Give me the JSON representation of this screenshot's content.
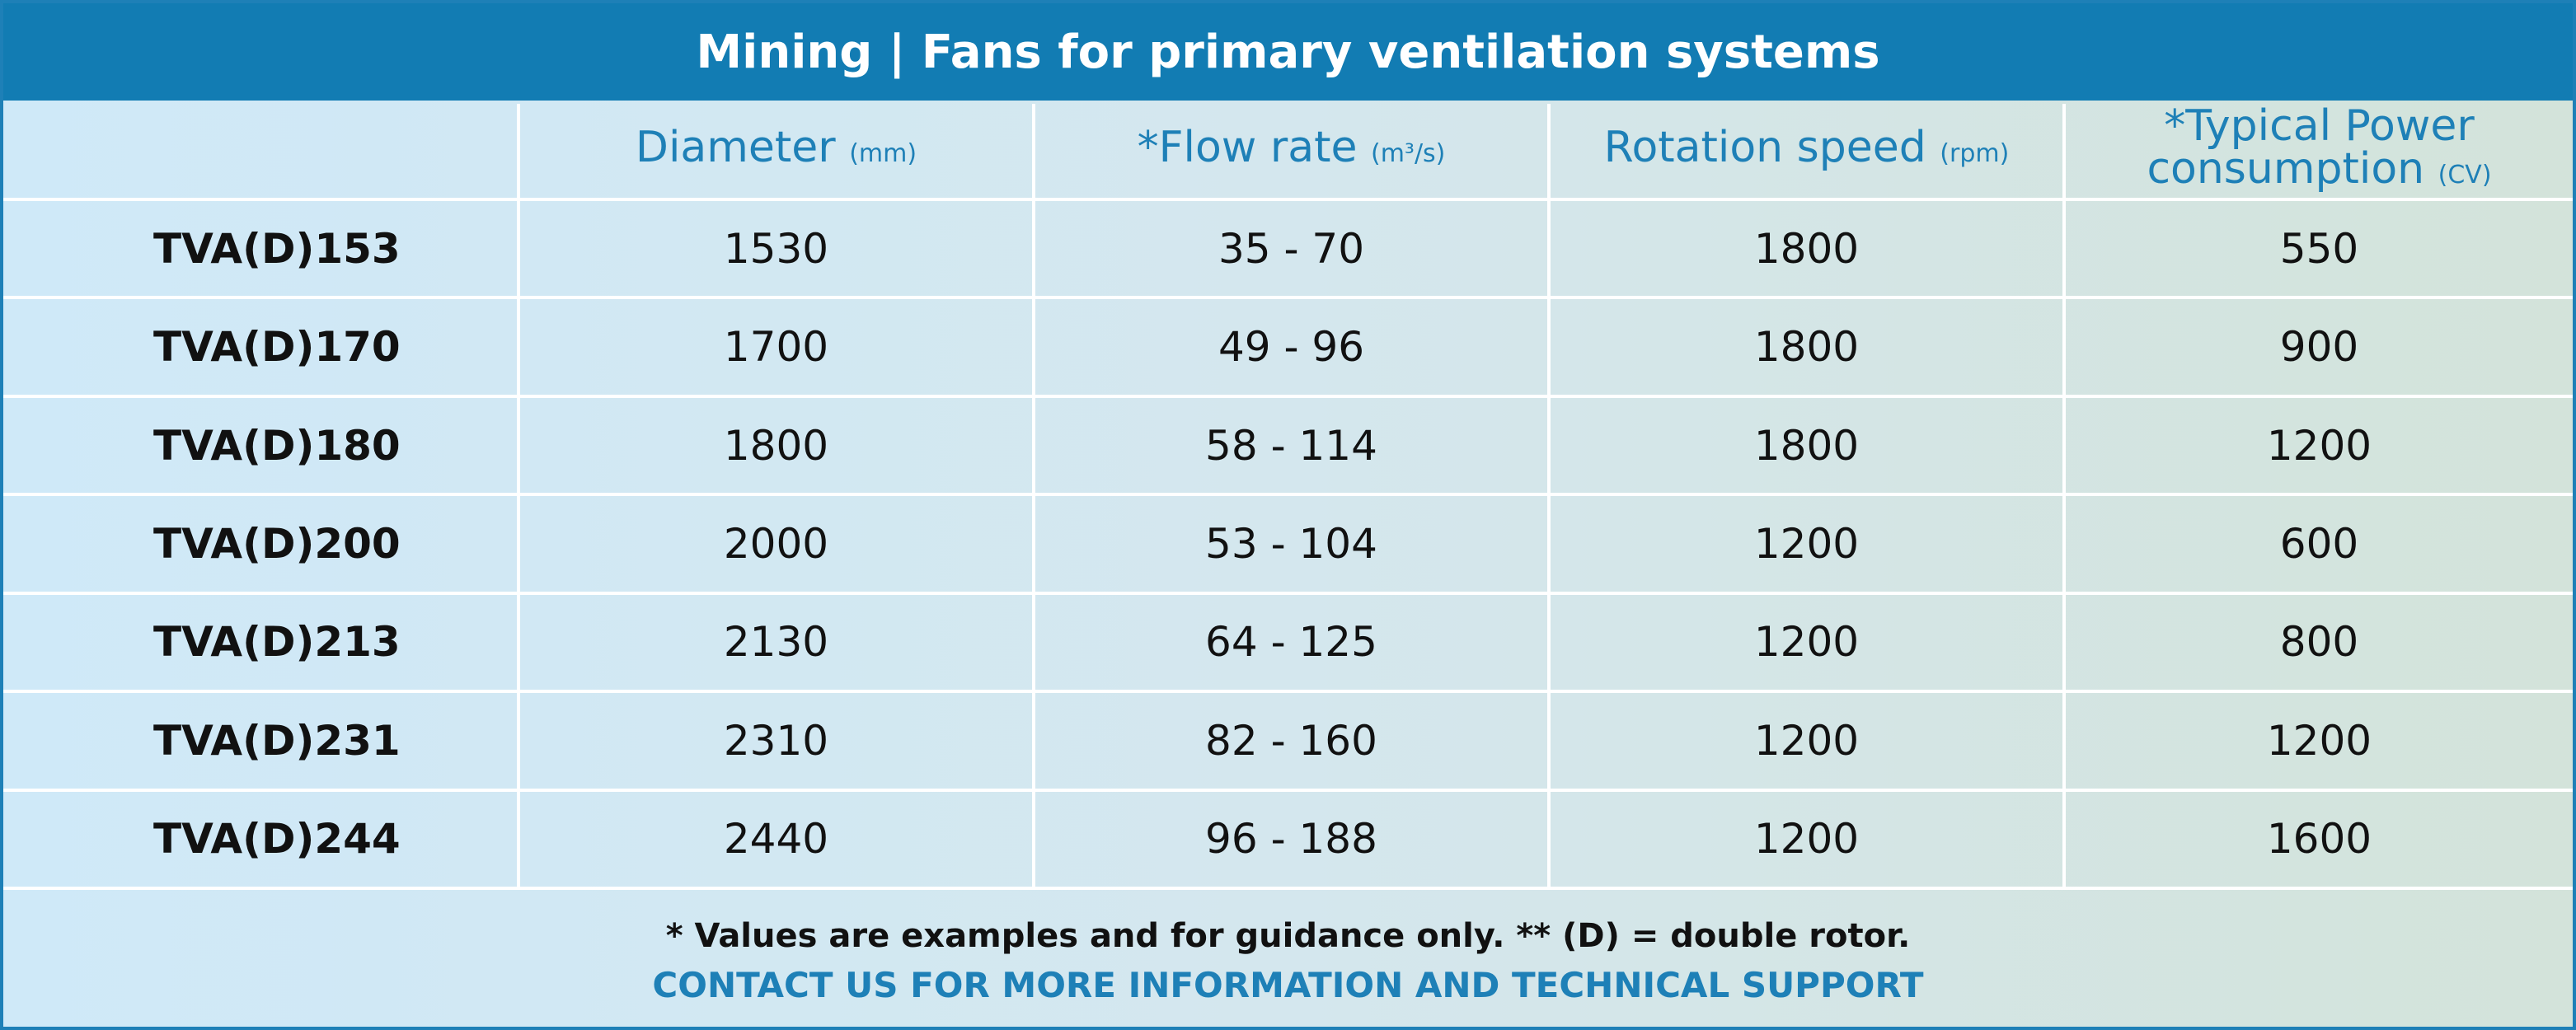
{
  "title": "Mining | Fans for primary ventilation systems",
  "table": {
    "headers": [
      {
        "label": "",
        "unit": ""
      },
      {
        "label": "Diameter",
        "unit": "(mm)"
      },
      {
        "label": "*Flow rate",
        "unit": "(m³/s)"
      },
      {
        "label": "Rotation speed",
        "unit": "(rpm)"
      },
      {
        "label": "*Typical Power consumption",
        "unit": "(CV)"
      }
    ],
    "rows": [
      {
        "model": "TVA(D)153",
        "diameter": "1530",
        "flow_rate": "35 - 70",
        "rotation_speed": "1800",
        "power": "550"
      },
      {
        "model": "TVA(D)170",
        "diameter": "1700",
        "flow_rate": "49 - 96",
        "rotation_speed": "1800",
        "power": "900"
      },
      {
        "model": "TVA(D)180",
        "diameter": "1800",
        "flow_rate": "58 - 114",
        "rotation_speed": "1800",
        "power": "1200"
      },
      {
        "model": "TVA(D)200",
        "diameter": "2000",
        "flow_rate": "53 - 104",
        "rotation_speed": "1200",
        "power": "600"
      },
      {
        "model": "TVA(D)213",
        "diameter": "2130",
        "flow_rate": "64 - 125",
        "rotation_speed": "1200",
        "power": "800"
      },
      {
        "model": "TVA(D)231",
        "diameter": "2310",
        "flow_rate": "82 - 160",
        "rotation_speed": "1200",
        "power": "1200"
      },
      {
        "model": "TVA(D)244",
        "diameter": "2440",
        "flow_rate": "96 - 188",
        "rotation_speed": "1200",
        "power": "1600"
      }
    ]
  },
  "footer": {
    "note": "* Values are examples and for guidance only. ** (D) = double rotor.",
    "contact": "CONTACT US FOR MORE INFORMATION AND TECHNICAL SUPPORT"
  },
  "colors": {
    "title_bar": "#127cb3",
    "accent": "#1e80b7",
    "text": "#111111",
    "grid_lines": "#ffffff"
  }
}
